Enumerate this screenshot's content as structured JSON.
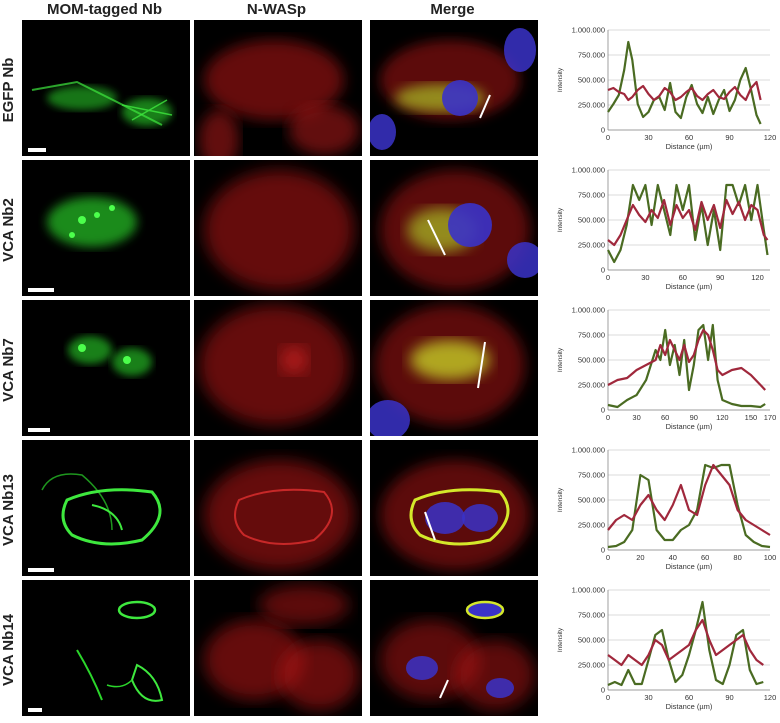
{
  "column_headers": [
    "MOM-tagged Nb",
    "N-WASp",
    "Merge"
  ],
  "rows": [
    {
      "label": "EGFP Nb"
    },
    {
      "label": "VCA Nb2"
    },
    {
      "label": "VCA Nb7"
    },
    {
      "label": "VCA Nb13"
    },
    {
      "label": "VCA Nb14"
    }
  ],
  "colors": {
    "green_channel": "#2bd62b",
    "red_channel": "#d42020",
    "blue_channel": "#3a32c8",
    "green_line": "#4a6b22",
    "red_line": "#a0283c"
  },
  "chart_data": [
    {
      "type": "line",
      "xlabel": "Distance (µm)",
      "ylabel": "Intensity",
      "xlim": [
        0,
        120
      ],
      "xticks": [
        0,
        30,
        60,
        90,
        120
      ],
      "ylim": [
        0,
        1000000
      ],
      "yticks": [
        "0",
        "250.000",
        "500.000",
        "750.000",
        "1.000.000"
      ],
      "grid": true,
      "series": [
        {
          "color": "green",
          "x": [
            0,
            4,
            8,
            12,
            15,
            18,
            22,
            26,
            30,
            34,
            38,
            42,
            46,
            50,
            54,
            58,
            62,
            66,
            70,
            74,
            78,
            82,
            86,
            90,
            94,
            98,
            102,
            106,
            110,
            113
          ],
          "y": [
            180000,
            260000,
            350000,
            600000,
            880000,
            700000,
            260000,
            130000,
            180000,
            300000,
            330000,
            200000,
            470000,
            180000,
            120000,
            330000,
            450000,
            260000,
            170000,
            330000,
            160000,
            300000,
            400000,
            190000,
            300000,
            500000,
            620000,
            400000,
            150000,
            60000
          ]
        },
        {
          "color": "red",
          "x": [
            0,
            4,
            8,
            12,
            15,
            18,
            22,
            26,
            30,
            34,
            38,
            42,
            46,
            50,
            54,
            58,
            62,
            66,
            70,
            74,
            78,
            82,
            86,
            90,
            94,
            98,
            102,
            106,
            110,
            113
          ],
          "y": [
            400000,
            420000,
            380000,
            360000,
            300000,
            330000,
            400000,
            440000,
            360000,
            300000,
            340000,
            420000,
            380000,
            300000,
            330000,
            380000,
            420000,
            340000,
            300000,
            360000,
            400000,
            330000,
            310000,
            380000,
            430000,
            350000,
            300000,
            420000,
            480000,
            300000
          ]
        }
      ]
    },
    {
      "type": "line",
      "xlabel": "Distance (µm)",
      "ylabel": "Intensity",
      "xlim": [
        0,
        130
      ],
      "xticks": [
        0,
        30,
        60,
        90,
        120
      ],
      "ylim": [
        0,
        1000000
      ],
      "yticks": [
        "0",
        "250.000",
        "500.000",
        "750.000",
        "1.000.000"
      ],
      "grid": true,
      "series": [
        {
          "color": "green",
          "x": [
            0,
            5,
            10,
            15,
            20,
            25,
            30,
            35,
            40,
            45,
            50,
            55,
            60,
            65,
            70,
            75,
            80,
            85,
            90,
            95,
            100,
            105,
            110,
            115,
            120,
            125,
            128
          ],
          "y": [
            200000,
            80000,
            200000,
            450000,
            850000,
            700000,
            850000,
            450000,
            850000,
            600000,
            350000,
            850000,
            600000,
            850000,
            300000,
            650000,
            250000,
            600000,
            200000,
            850000,
            850000,
            650000,
            850000,
            500000,
            850000,
            400000,
            150000
          ]
        },
        {
          "color": "red",
          "x": [
            0,
            5,
            10,
            15,
            20,
            25,
            30,
            35,
            40,
            45,
            50,
            55,
            60,
            65,
            70,
            75,
            80,
            85,
            90,
            95,
            100,
            105,
            110,
            115,
            120,
            125,
            128
          ],
          "y": [
            300000,
            250000,
            350000,
            500000,
            650000,
            550000,
            480000,
            600000,
            520000,
            700000,
            450000,
            650000,
            520000,
            600000,
            400000,
            680000,
            500000,
            650000,
            420000,
            700000,
            560000,
            680000,
            500000,
            650000,
            600000,
            350000,
            300000
          ]
        }
      ]
    },
    {
      "type": "line",
      "xlabel": "Distance (µm)",
      "ylabel": "Intensity",
      "xlim": [
        0,
        170
      ],
      "xticks": [
        0,
        30,
        60,
        90,
        120,
        150,
        170
      ],
      "ylim": [
        0,
        1000000
      ],
      "yticks": [
        "0",
        "250.000",
        "500.000",
        "750.000",
        "1.000.000"
      ],
      "grid": true,
      "series": [
        {
          "color": "green",
          "x": [
            0,
            10,
            20,
            30,
            40,
            50,
            55,
            60,
            65,
            70,
            75,
            80,
            85,
            90,
            95,
            100,
            105,
            110,
            115,
            120,
            130,
            140,
            150,
            160,
            165
          ],
          "y": [
            50000,
            30000,
            100000,
            150000,
            300000,
            600000,
            500000,
            800000,
            450000,
            650000,
            350000,
            700000,
            200000,
            450000,
            800000,
            850000,
            500000,
            850000,
            300000,
            100000,
            60000,
            40000,
            40000,
            30000,
            60000
          ]
        },
        {
          "color": "red",
          "x": [
            0,
            10,
            20,
            30,
            40,
            50,
            55,
            60,
            65,
            70,
            75,
            80,
            85,
            90,
            95,
            100,
            105,
            110,
            115,
            120,
            130,
            140,
            150,
            160,
            165
          ],
          "y": [
            250000,
            300000,
            320000,
            400000,
            450000,
            500000,
            650000,
            550000,
            700000,
            600000,
            500000,
            650000,
            480000,
            550000,
            700000,
            800000,
            750000,
            600000,
            400000,
            350000,
            400000,
            420000,
            350000,
            250000,
            200000
          ]
        }
      ]
    },
    {
      "type": "line",
      "xlabel": "Distance (µm)",
      "ylabel": "Intensity",
      "xlim": [
        0,
        100
      ],
      "xticks": [
        0,
        20,
        40,
        60,
        80,
        100
      ],
      "ylim": [
        0,
        1000000
      ],
      "yticks": [
        "0",
        "250.000",
        "500.000",
        "750.000",
        "1.000.000"
      ],
      "grid": true,
      "series": [
        {
          "color": "green",
          "x": [
            0,
            5,
            10,
            15,
            20,
            25,
            30,
            35,
            40,
            45,
            50,
            55,
            60,
            65,
            70,
            75,
            80,
            85,
            90,
            95,
            100
          ],
          "y": [
            30000,
            40000,
            80000,
            200000,
            750000,
            700000,
            200000,
            100000,
            100000,
            200000,
            250000,
            400000,
            850000,
            820000,
            850000,
            850000,
            450000,
            150000,
            80000,
            40000,
            30000
          ]
        },
        {
          "color": "red",
          "x": [
            0,
            5,
            10,
            15,
            20,
            25,
            30,
            35,
            40,
            45,
            50,
            55,
            60,
            65,
            70,
            75,
            80,
            85,
            90,
            95,
            100
          ],
          "y": [
            200000,
            300000,
            350000,
            300000,
            450000,
            550000,
            400000,
            300000,
            450000,
            650000,
            400000,
            350000,
            650000,
            850000,
            750000,
            650000,
            400000,
            300000,
            250000,
            200000,
            150000
          ]
        }
      ]
    },
    {
      "type": "line",
      "xlabel": "Distance (µm)",
      "ylabel": "Intensity",
      "xlim": [
        0,
        120
      ],
      "xticks": [
        0,
        30,
        60,
        90,
        120
      ],
      "ylim": [
        0,
        1000000
      ],
      "yticks": [
        "0",
        "250.000",
        "500.000",
        "750.000",
        "1.000.000"
      ],
      "grid": true,
      "series": [
        {
          "color": "green",
          "x": [
            0,
            5,
            10,
            15,
            20,
            25,
            30,
            35,
            40,
            45,
            50,
            55,
            60,
            65,
            70,
            75,
            80,
            85,
            90,
            95,
            100,
            105,
            110,
            115
          ],
          "y": [
            50000,
            80000,
            50000,
            200000,
            60000,
            60000,
            300000,
            550000,
            600000,
            300000,
            80000,
            150000,
            350000,
            600000,
            880000,
            400000,
            100000,
            60000,
            250000,
            550000,
            600000,
            200000,
            60000,
            80000
          ]
        },
        {
          "color": "red",
          "x": [
            0,
            5,
            10,
            15,
            20,
            25,
            30,
            35,
            40,
            45,
            50,
            55,
            60,
            65,
            70,
            75,
            80,
            85,
            90,
            95,
            100,
            105,
            110,
            115
          ],
          "y": [
            350000,
            300000,
            250000,
            350000,
            300000,
            250000,
            350000,
            500000,
            450000,
            300000,
            350000,
            400000,
            450000,
            600000,
            700000,
            500000,
            350000,
            400000,
            450000,
            500000,
            550000,
            400000,
            300000,
            250000
          ]
        }
      ]
    }
  ]
}
